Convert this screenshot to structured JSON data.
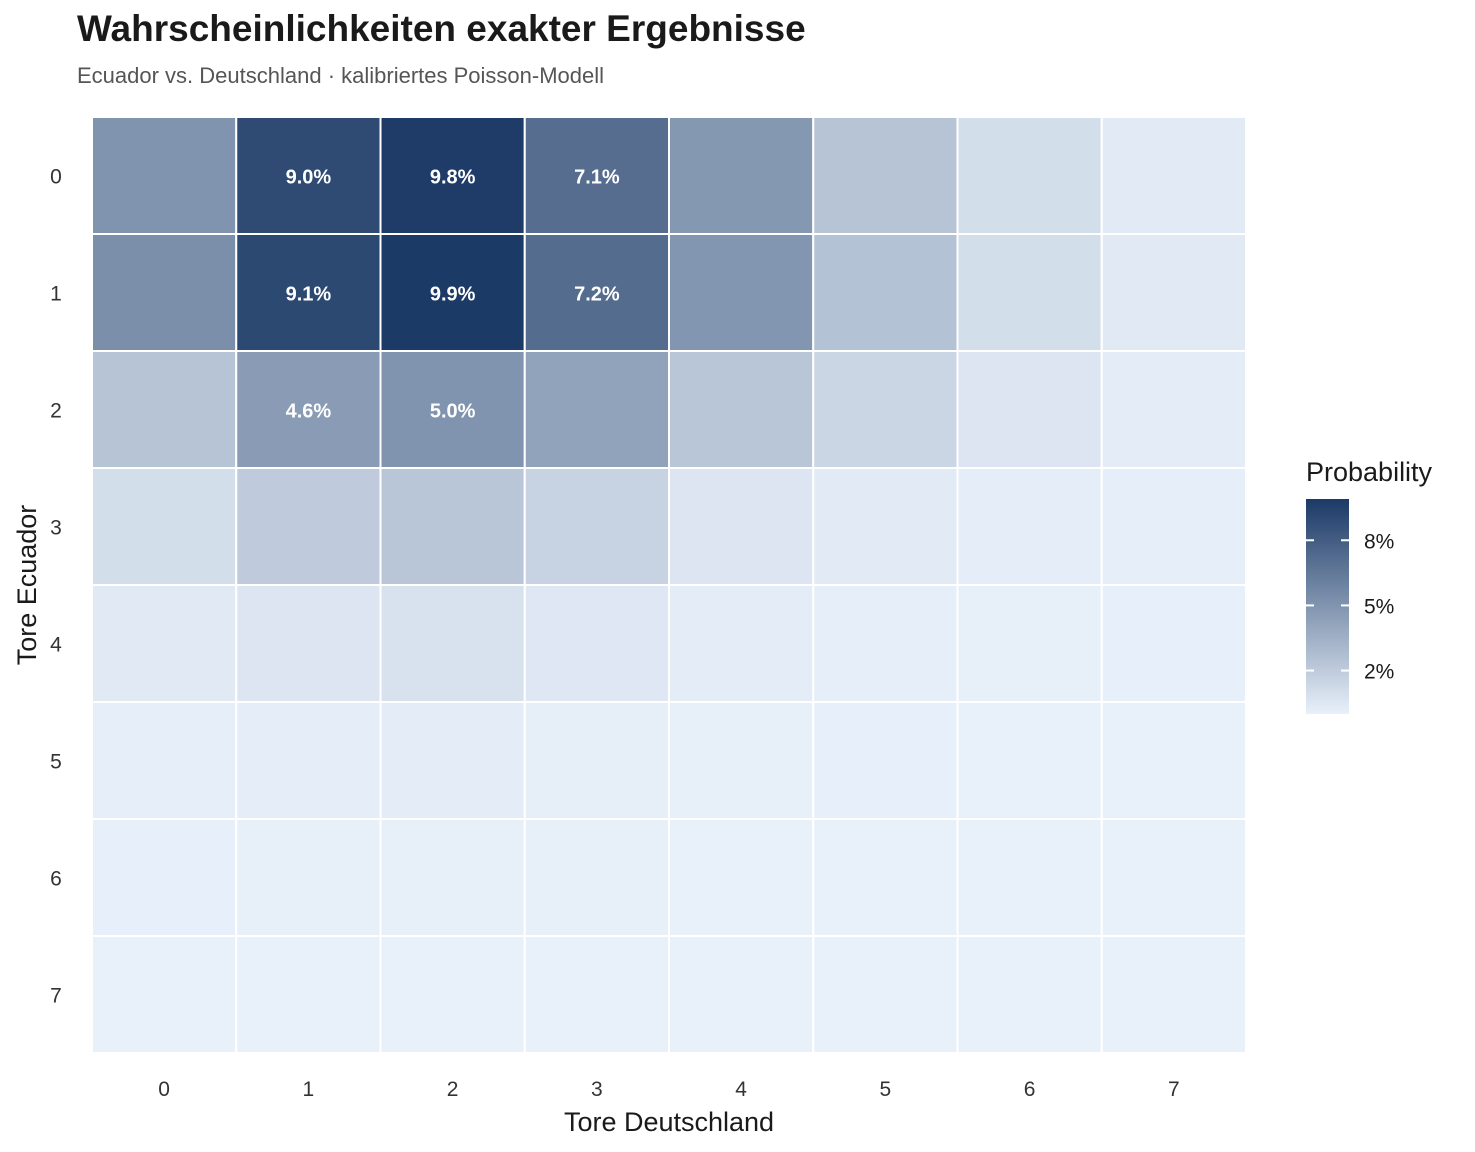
{
  "chart_data": {
    "type": "heatmap",
    "title": "Wahrscheinlichkeiten exakter Ergebnisse",
    "subtitle": "Ecuador vs. Deutschland · kalibriertes Poisson-Modell",
    "xlabel": "Tore Deutschland",
    "ylabel": "Tore Ecuador",
    "x_categories": [
      "0",
      "1",
      "2",
      "3",
      "4",
      "5",
      "6",
      "7"
    ],
    "y_categories": [
      "0",
      "1",
      "2",
      "3",
      "4",
      "5",
      "6",
      "7"
    ],
    "values": [
      [
        5.0,
        9.0,
        9.8,
        7.1,
        4.8,
        2.4,
        1.0,
        0.35
      ],
      [
        5.3,
        9.1,
        9.9,
        7.2,
        4.9,
        2.5,
        1.0,
        0.37
      ],
      [
        2.4,
        4.6,
        5.0,
        4.2,
        2.3,
        1.4,
        0.6,
        0.2
      ],
      [
        1.0,
        2.0,
        2.3,
        1.6,
        0.6,
        0.3,
        0.15,
        0.08
      ],
      [
        0.4,
        0.6,
        0.8,
        0.5,
        0.2,
        0.1,
        0.05,
        0.03
      ],
      [
        0.1,
        0.15,
        0.2,
        0.12,
        0.05,
        0.03,
        0.02,
        0.01
      ],
      [
        0.03,
        0.05,
        0.06,
        0.04,
        0.02,
        0.01,
        0.005,
        0.003
      ],
      [
        0.01,
        0.01,
        0.02,
        0.01,
        0.005,
        0.003,
        0.002,
        0.001
      ]
    ],
    "cell_labels": [
      {
        "x": "1",
        "y": "0",
        "text": "9.0%"
      },
      {
        "x": "2",
        "y": "0",
        "text": "9.8%"
      },
      {
        "x": "3",
        "y": "0",
        "text": "7.1%"
      },
      {
        "x": "1",
        "y": "1",
        "text": "9.1%"
      },
      {
        "x": "2",
        "y": "1",
        "text": "9.9%"
      },
      {
        "x": "3",
        "y": "1",
        "text": "7.2%"
      },
      {
        "x": "1",
        "y": "2",
        "text": "4.6%"
      },
      {
        "x": "2",
        "y": "2",
        "text": "5.0%"
      }
    ],
    "legend": {
      "title": "Probability",
      "ticks": [
        {
          "value": 2,
          "label": "2%"
        },
        {
          "value": 5,
          "label": "5%"
        },
        {
          "value": 8,
          "label": "8%"
        }
      ],
      "range": [
        0,
        9.9
      ],
      "low_color": "#e8f0fa",
      "high_color": "#1c3a66",
      "placement": "right"
    },
    "grid_line_color": "#ffffff"
  }
}
